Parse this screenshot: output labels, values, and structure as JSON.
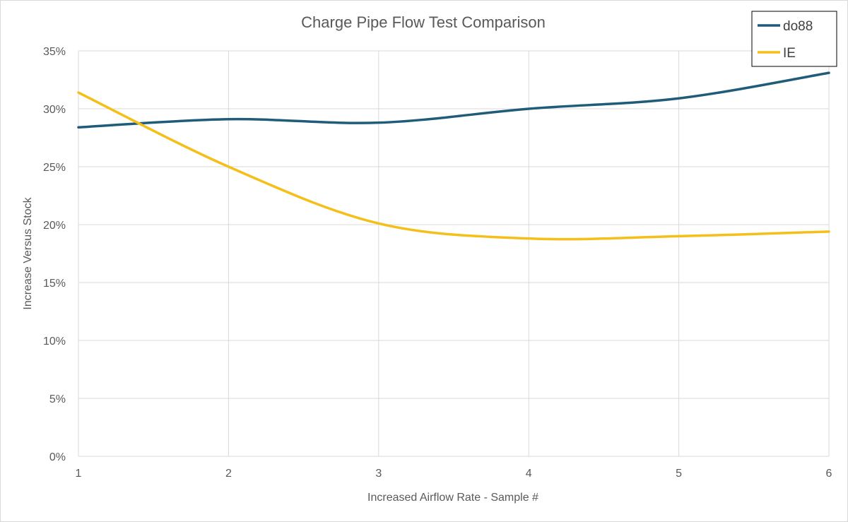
{
  "chart_data": {
    "type": "line",
    "title": "Charge Pipe Flow Test Comparison",
    "xlabel": "Increased Airflow Rate - Sample #",
    "ylabel": "Increase Versus Stock",
    "x": [
      1,
      2,
      3,
      4,
      5,
      6
    ],
    "x_tick_labels": [
      "1",
      "2",
      "3",
      "4",
      "5",
      "6"
    ],
    "xlim": [
      1,
      6
    ],
    "ylim": [
      0,
      0.35
    ],
    "y_ticks": [
      0,
      0.05,
      0.1,
      0.15,
      0.2,
      0.25,
      0.3,
      0.35
    ],
    "y_tick_labels": [
      "0%",
      "5%",
      "10%",
      "15%",
      "20%",
      "25%",
      "30%",
      "35%"
    ],
    "grid": true,
    "smoothed": true,
    "legend_position": "top-right",
    "series": [
      {
        "name": "do88",
        "color": "#1f5c7a",
        "values": [
          0.284,
          0.291,
          0.288,
          0.3,
          0.309,
          0.331
        ]
      },
      {
        "name": "IE",
        "color": "#f5bf1a",
        "values": [
          0.314,
          0.25,
          0.201,
          0.188,
          0.19,
          0.194
        ]
      }
    ]
  }
}
